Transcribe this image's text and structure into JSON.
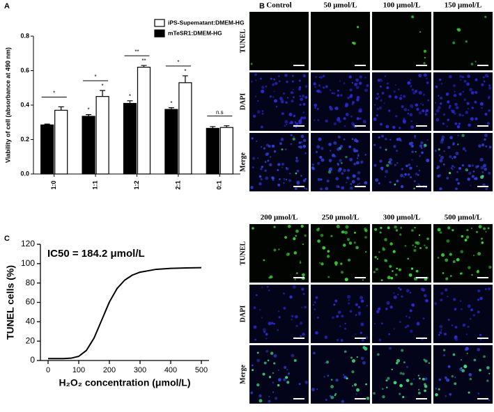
{
  "chart_data": [
    {
      "type": "bar",
      "panel": "A",
      "ylabel": "Viability of cell (absorbance at 490 nm)",
      "categories": [
        "1:0",
        "1:1",
        "1:2",
        "2:1",
        "0:1"
      ],
      "series": [
        {
          "name": "iPS-Supematant:DMEM-HG",
          "color": "#ffffff",
          "values": [
            0.37,
            0.45,
            0.62,
            0.53,
            0.27
          ],
          "errors": [
            0.02,
            0.035,
            0.01,
            0.04,
            0.01
          ],
          "marker_labels": [
            null,
            "*",
            "**",
            "*",
            null
          ]
        },
        {
          "name": "mTeSR1:DMEM-HG",
          "color": "#000000",
          "values": [
            0.285,
            0.335,
            0.41,
            0.375,
            0.265
          ],
          "errors": [
            0.005,
            0.01,
            0.015,
            0.01,
            0.01
          ],
          "marker_labels": [
            null,
            "*",
            "*",
            "*",
            null
          ]
        }
      ],
      "bracket_labels": [
        "*",
        "*",
        "**",
        "*",
        "n.s"
      ],
      "ylim": [
        0,
        0.8
      ],
      "yticks": [
        {
          "value": 0,
          "label": "0.0"
        },
        0.2,
        0.4,
        0.6,
        0.8
      ],
      "legend": "upper right"
    },
    {
      "type": "line",
      "panel": "C",
      "annotation": "IC50 = 184.2 μmol/L",
      "ylabel": "TUNEL cells (%)",
      "xlabel": "H₂O₂ concentration (μmol/L)",
      "color": "#000000",
      "x": [
        0,
        25,
        50,
        75,
        100,
        125,
        150,
        175,
        200,
        225,
        250,
        275,
        300,
        350,
        400,
        450,
        500
      ],
      "values": [
        2,
        2,
        2,
        2.4,
        4.3,
        10.4,
        23.2,
        41.8,
        60.4,
        74.3,
        83,
        88.2,
        91.2,
        94,
        95.1,
        95.6,
        95.8
      ],
      "xlim": [
        -25,
        525
      ],
      "xticks": [
        0,
        100,
        200,
        300,
        400,
        500
      ],
      "ylim": [
        0,
        120
      ],
      "yticks": [
        0,
        20,
        40,
        60,
        80,
        100,
        120
      ]
    }
  ],
  "image_panel": {
    "panel": "B",
    "rows": [
      "TUNEL",
      "DAPI",
      "Merge"
    ],
    "top_columns": [
      "Control",
      "50 μmol/L",
      "100 μmol/L",
      "150 μmol/L"
    ],
    "bottom_columns": [
      "200 μmol/L",
      "250 μmol/L",
      "300 μmol/L",
      "500 μmol/L"
    ]
  }
}
